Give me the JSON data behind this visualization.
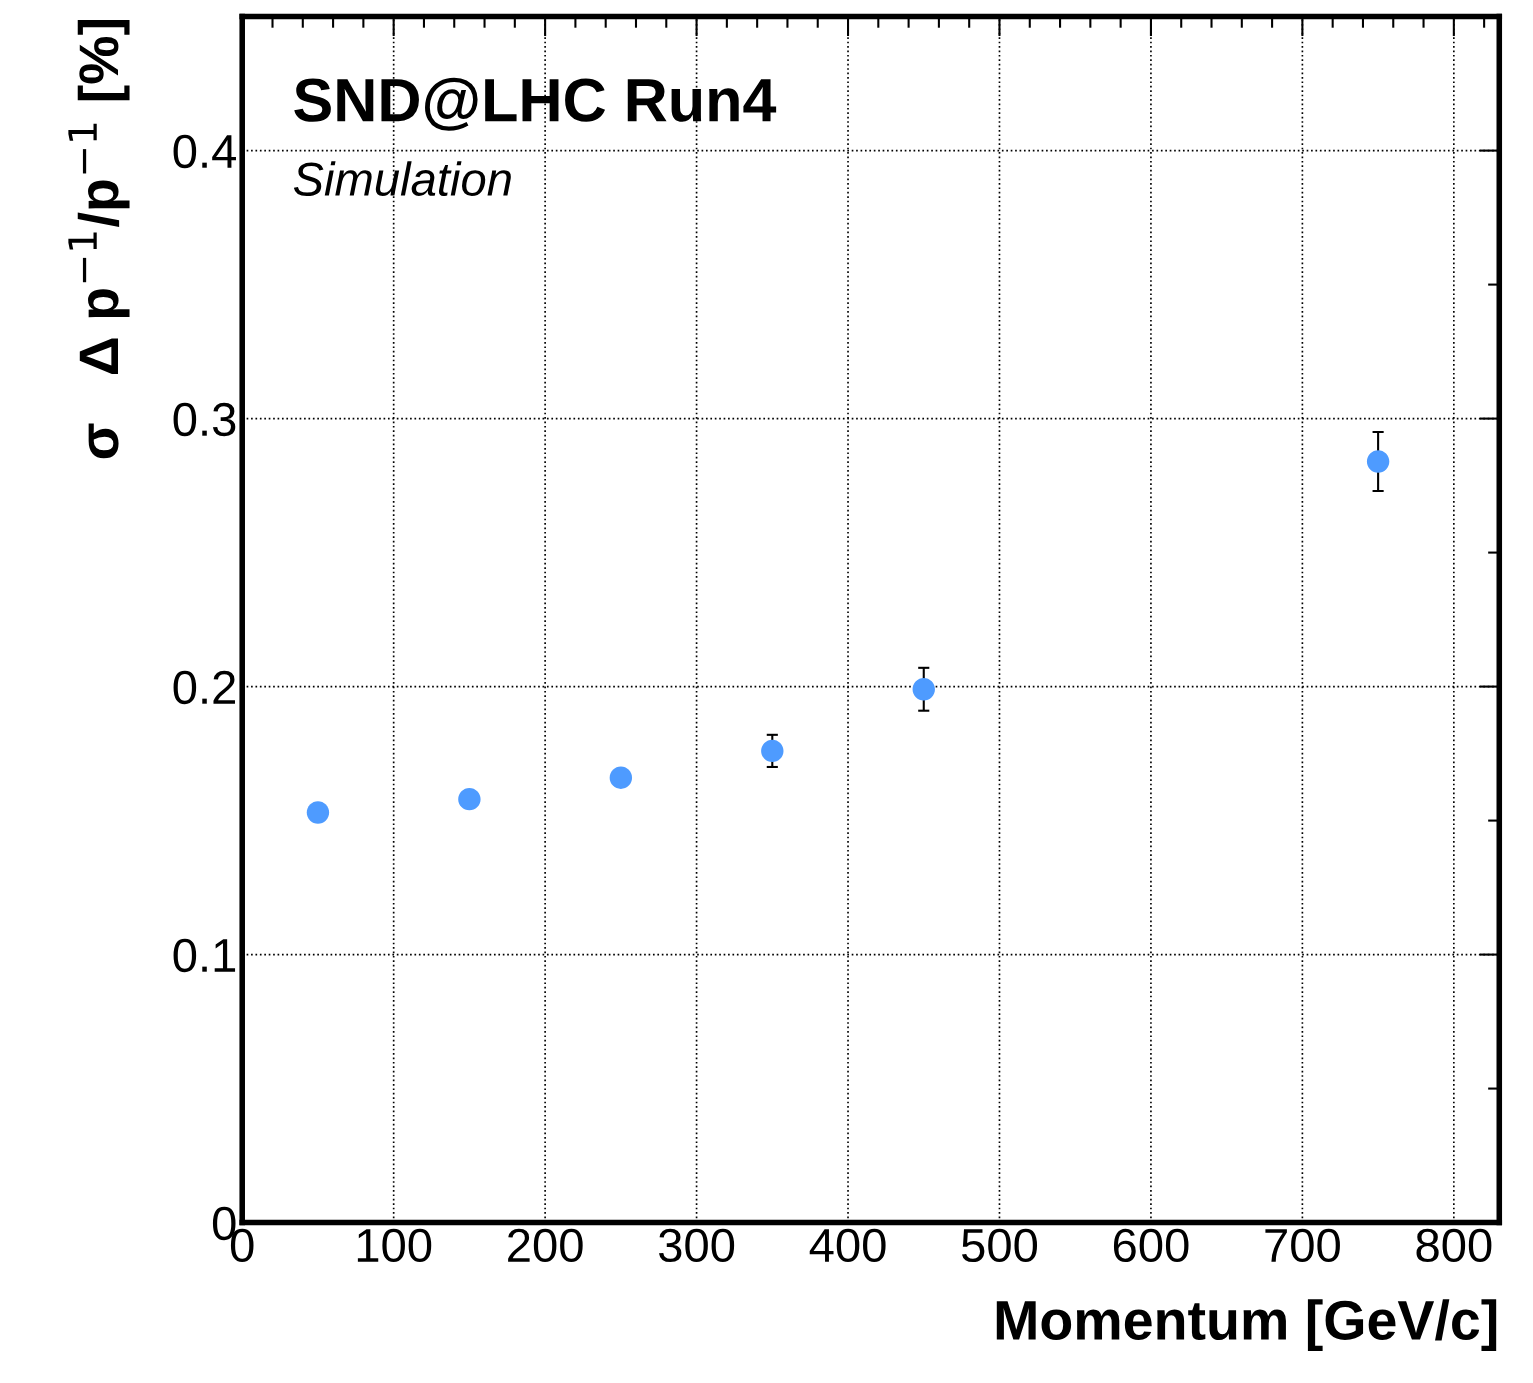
{
  "chart_data": {
    "type": "scatter",
    "xlabel": "Momentum [GeV/c]",
    "ylabel": "σ   Δ p$^{−1}$/p$^{−1}$ [%]",
    "annotations": [
      "SND@LHC Run4",
      "Simulation"
    ],
    "x": [
      50,
      150,
      250,
      350,
      450,
      750
    ],
    "series": [
      {
        "color": "#4e9bff",
        "values": [
          0.153,
          0.158,
          0.166,
          0.176,
          0.199,
          0.284
        ],
        "errors": [
          null,
          null,
          null,
          0.006,
          0.008,
          0.011
        ]
      }
    ],
    "marker": "circle",
    "grid": true,
    "line_style": "dotted",
    "xlim": [
      0,
      830
    ],
    "ylim": [
      0,
      0.45
    ],
    "xticks": [
      0,
      100,
      200,
      300,
      400,
      500,
      600,
      700,
      800
    ],
    "yticks": [
      0,
      0.1,
      0.2,
      0.3,
      0.4
    ]
  }
}
